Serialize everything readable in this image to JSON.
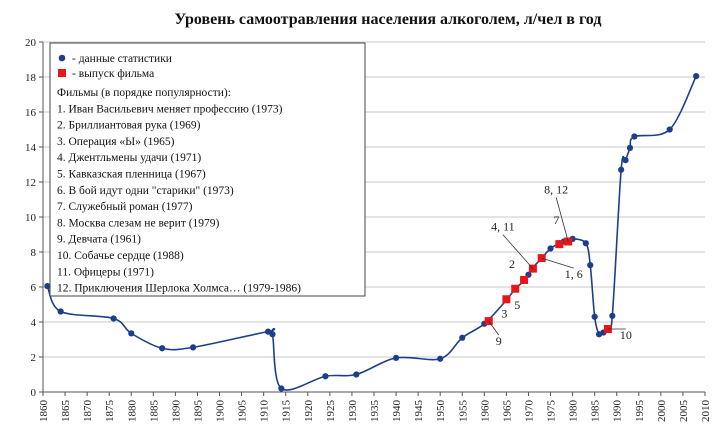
{
  "chart_data": {
    "type": "line",
    "title": "Уровень самоотравления населения алкоголем, л/чел в год",
    "xlabel": "",
    "ylabel": "",
    "xlim": [
      1860,
      2010
    ],
    "ylim": [
      0,
      20
    ],
    "x_ticks": [
      1860,
      1865,
      1870,
      1875,
      1880,
      1885,
      1890,
      1895,
      1900,
      1905,
      1910,
      1915,
      1920,
      1925,
      1930,
      1935,
      1940,
      1945,
      1950,
      1955,
      1960,
      1965,
      1970,
      1975,
      1980,
      1985,
      1990,
      1995,
      2000,
      2005,
      2010
    ],
    "y_ticks": [
      0,
      2,
      4,
      6,
      8,
      10,
      12,
      14,
      16,
      18,
      20
    ],
    "grid": "horizontal",
    "legend_position": "top-left",
    "colors": {
      "series": "#1d3f8a",
      "film": "#e8161a"
    },
    "series": [
      {
        "name": "- данные статистики",
        "marker": "circle",
        "points": [
          [
            1861,
            6.05
          ],
          [
            1864,
            4.6
          ],
          [
            1876,
            4.2
          ],
          [
            1880,
            3.35
          ],
          [
            1887,
            2.5
          ],
          [
            1894,
            2.55
          ],
          [
            1911,
            3.45
          ],
          [
            1912,
            3.3
          ],
          [
            1914,
            0.2
          ],
          [
            1924,
            0.9
          ],
          [
            1931,
            1.0
          ],
          [
            1940,
            1.95
          ],
          [
            1950,
            1.9
          ],
          [
            1955,
            3.1
          ],
          [
            1960,
            3.9
          ],
          [
            1965,
            5.25
          ],
          [
            1967,
            5.9
          ],
          [
            1969,
            6.35
          ],
          [
            1970,
            6.7
          ],
          [
            1971,
            7.1
          ],
          [
            1973,
            7.65
          ],
          [
            1975,
            8.2
          ],
          [
            1977,
            8.5
          ],
          [
            1978,
            8.6
          ],
          [
            1980,
            8.75
          ],
          [
            1983,
            8.5
          ],
          [
            1984,
            7.25
          ],
          [
            1985,
            4.3
          ],
          [
            1986,
            3.3
          ],
          [
            1987,
            3.4
          ],
          [
            1988,
            3.6
          ],
          [
            1989,
            4.35
          ],
          [
            1991,
            12.7
          ],
          [
            1992,
            13.25
          ],
          [
            1993,
            13.95
          ],
          [
            1994,
            14.6
          ],
          [
            2002,
            15.0
          ],
          [
            2008,
            18.05
          ]
        ]
      },
      {
        "name": "- выпуск фильма",
        "marker": "square",
        "points": [
          [
            1961,
            4.05
          ],
          [
            1965,
            5.3
          ],
          [
            1967,
            5.9
          ],
          [
            1969,
            6.4
          ],
          [
            1971,
            7.05
          ],
          [
            1973,
            7.65
          ],
          [
            1977,
            8.45
          ],
          [
            1979,
            8.6
          ],
          [
            1988,
            3.6
          ]
        ]
      }
    ],
    "annotations": [
      {
        "text": "9",
        "x": 1961,
        "y": 4.05
      },
      {
        "text": "3",
        "x": 1965,
        "y": 5.3
      },
      {
        "text": "5",
        "x": 1967,
        "y": 5.9
      },
      {
        "text": "2",
        "x": 1969,
        "y": 6.4
      },
      {
        "text": "4, 11",
        "x": 1971,
        "y": 7.05
      },
      {
        "text": "1, 6",
        "x": 1973,
        "y": 7.65
      },
      {
        "text": "7",
        "x": 1977,
        "y": 8.45
      },
      {
        "text": "8, 12",
        "x": 1979,
        "y": 8.6
      },
      {
        "text": "10",
        "x": 1988,
        "y": 3.6
      }
    ],
    "legend_text": [
      "Фильмы (в порядке популярности):",
      "1. Иван Васильевич меняет профессию (1973)",
      "2. Бриллиантовая рука (1969)",
      "3. Операция «Ы» (1965)",
      "4. Джентльмены удачи (1971)",
      "5. Кавказская пленница (1967)",
      "6. В бой идут одни \"старики\" (1973)",
      "7. Служебный роман (1977)",
      "8. Москва слезам не верит (1979)",
      "9. Девчата (1961)",
      "10. Собачье сердце (1988)",
      "11. Офицеры (1971)",
      "12. Приключения Шерлока Холмса… (1979-1986)"
    ]
  }
}
